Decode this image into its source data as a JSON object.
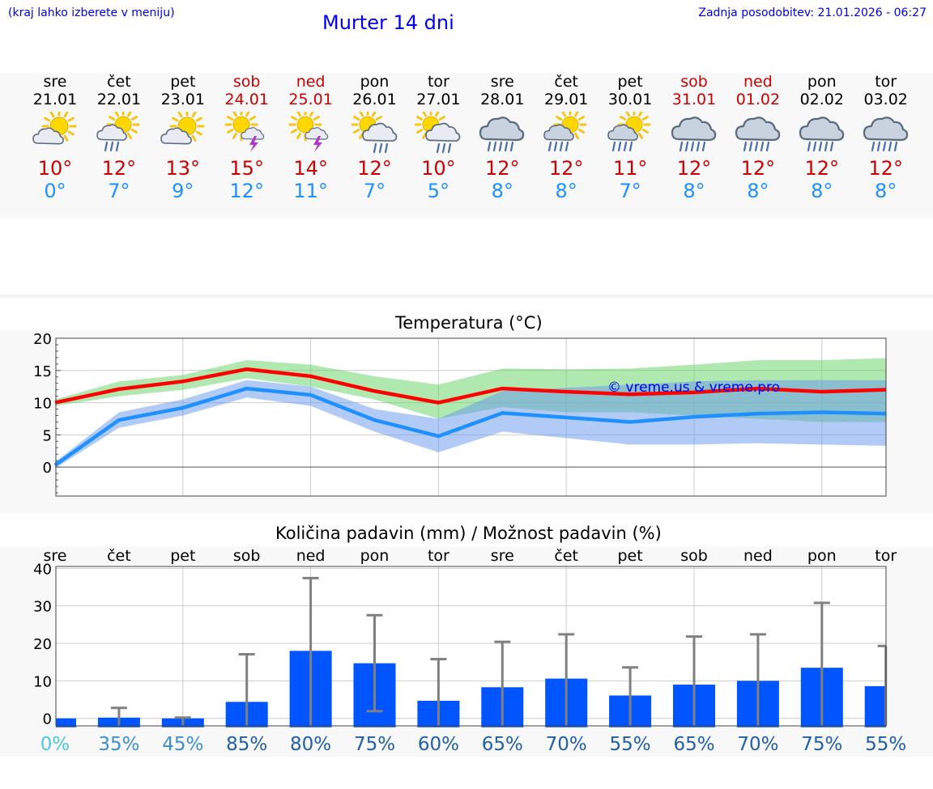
{
  "header": {
    "note_left": "(kraj lahko izberete v meniju)",
    "title": "Murter 14 dni",
    "note_right": "Zadnja posodobitev: 21.01.2026 - 06:27"
  },
  "colors": {
    "weekday": "#000000",
    "weekend": "#cc0000",
    "tmax": "#ff0000",
    "tmin": "#1e90ff",
    "tmax_band": "#5fd35f",
    "tmin_band": "#6495ed",
    "bar": "#0055ff",
    "errorbar": "#808080",
    "link": "#0000ee"
  },
  "days": [
    {
      "name": "sre",
      "date": "21.01",
      "weekend": false,
      "icon": "partly-cloudy-icon",
      "tmax": "10°",
      "tmin": "0°"
    },
    {
      "name": "čet",
      "date": "22.01",
      "weekend": false,
      "icon": "partly-cloudy-rain-icon",
      "tmax": "12°",
      "tmin": "7°"
    },
    {
      "name": "pet",
      "date": "23.01",
      "weekend": false,
      "icon": "partly-cloudy-icon",
      "tmax": "13°",
      "tmin": "9°"
    },
    {
      "name": "sob",
      "date": "24.01",
      "weekend": true,
      "icon": "sun-thunderstorm-icon",
      "tmax": "15°",
      "tmin": "12°"
    },
    {
      "name": "ned",
      "date": "25.01",
      "weekend": true,
      "icon": "sun-thunderstorm-icon",
      "tmax": "14°",
      "tmin": "11°"
    },
    {
      "name": "pon",
      "date": "26.01",
      "weekend": false,
      "icon": "sun-cloud-rain-icon",
      "tmax": "12°",
      "tmin": "7°"
    },
    {
      "name": "tor",
      "date": "27.01",
      "weekend": false,
      "icon": "sun-cloud-rain-icon",
      "tmax": "10°",
      "tmin": "5°"
    },
    {
      "name": "sre",
      "date": "28.01",
      "weekend": false,
      "icon": "heavy-rain-icon",
      "tmax": "12°",
      "tmin": "8°"
    },
    {
      "name": "čet",
      "date": "29.01",
      "weekend": false,
      "icon": "partly-cloudy-heavy-rain-icon",
      "tmax": "12°",
      "tmin": "8°"
    },
    {
      "name": "pet",
      "date": "30.01",
      "weekend": false,
      "icon": "partly-cloudy-heavy-rain-icon",
      "tmax": "11°",
      "tmin": "7°"
    },
    {
      "name": "sob",
      "date": "31.01",
      "weekend": true,
      "icon": "heavy-rain-icon",
      "tmax": "12°",
      "tmin": "8°"
    },
    {
      "name": "ned",
      "date": "01.02",
      "weekend": true,
      "icon": "heavy-rain-icon",
      "tmax": "12°",
      "tmin": "8°"
    },
    {
      "name": "pon",
      "date": "02.02",
      "weekend": false,
      "icon": "heavy-rain-icon",
      "tmax": "12°",
      "tmin": "8°"
    },
    {
      "name": "tor",
      "date": "03.02",
      "weekend": false,
      "icon": "heavy-rain-icon",
      "tmax": "12°",
      "tmin": "8°"
    }
  ],
  "chart_data": [
    {
      "type": "line",
      "title": "Temperatura (°C)",
      "x": [
        "sre",
        "čet",
        "pet",
        "sob",
        "ned",
        "pon",
        "tor",
        "sre",
        "čet",
        "pet",
        "sob",
        "ned",
        "pon",
        "tor"
      ],
      "ylim": [
        -4.5,
        20
      ],
      "yticks": [
        0,
        5,
        10,
        15,
        20
      ],
      "watermark": "© vreme.us & vreme.pro",
      "series": [
        {
          "name": "tmax",
          "values": [
            10,
            12.1,
            13.3,
            15.2,
            14.1,
            11.8,
            10,
            12.2,
            11.7,
            11.3,
            11.6,
            12.2,
            11.7,
            12
          ]
        },
        {
          "name": "tmax_upper",
          "values": [
            10.5,
            13.3,
            14.3,
            16.6,
            15.9,
            14.1,
            12.8,
            15.3,
            15.2,
            15.3,
            15.9,
            16.6,
            16.6,
            16.9
          ]
        },
        {
          "name": "tmax_lower",
          "values": [
            9.5,
            11,
            12,
            13.8,
            12.5,
            10.5,
            7.5,
            9.3,
            8.5,
            8.5,
            8,
            7.5,
            7,
            7
          ]
        },
        {
          "name": "tmin",
          "values": [
            0.3,
            7.3,
            9.2,
            12.2,
            11.2,
            7.3,
            4.8,
            8.4,
            7.7,
            7,
            7.8,
            8.3,
            8.5,
            8.3
          ]
        },
        {
          "name": "tmin_upper",
          "values": [
            0.8,
            8.5,
            10.5,
            13.5,
            12.5,
            9,
            7.5,
            11.8,
            12.3,
            12.8,
            13.3,
            13.5,
            13.5,
            13.5
          ]
        },
        {
          "name": "tmin_lower",
          "values": [
            -0.2,
            6.1,
            8,
            10.8,
            9.5,
            5.5,
            2.3,
            5.5,
            4.5,
            3.5,
            3.5,
            3.7,
            3.5,
            3.3
          ]
        }
      ]
    },
    {
      "type": "bar",
      "title": "Količina padavin (mm) / Možnost padavin (%)",
      "categories": [
        "sre",
        "čet",
        "pet",
        "sob",
        "ned",
        "pon",
        "tor",
        "sre",
        "čet",
        "pet",
        "sob",
        "ned",
        "pon",
        "tor"
      ],
      "ylim": [
        -2,
        40.5
      ],
      "yticks": [
        0,
        10,
        20,
        30,
        40
      ],
      "values": [
        0,
        0.2,
        0,
        4.4,
        18,
        14.7,
        4.7,
        8.3,
        10.6,
        6.1,
        9,
        10,
        13.5,
        8.6
      ],
      "error_high": [
        0,
        2.8,
        0.2,
        17.1,
        37.4,
        27.5,
        15.8,
        20.4,
        22.4,
        13.6,
        21.8,
        22.4,
        30.8,
        19.3
      ],
      "error_low": [
        0,
        0,
        0,
        0,
        0,
        1.9,
        0,
        0,
        0,
        0,
        0,
        0,
        0,
        0
      ],
      "probability": [
        "0%",
        "35%",
        "45%",
        "85%",
        "80%",
        "75%",
        "60%",
        "65%",
        "70%",
        "55%",
        "65%",
        "70%",
        "75%",
        "55%"
      ]
    }
  ]
}
